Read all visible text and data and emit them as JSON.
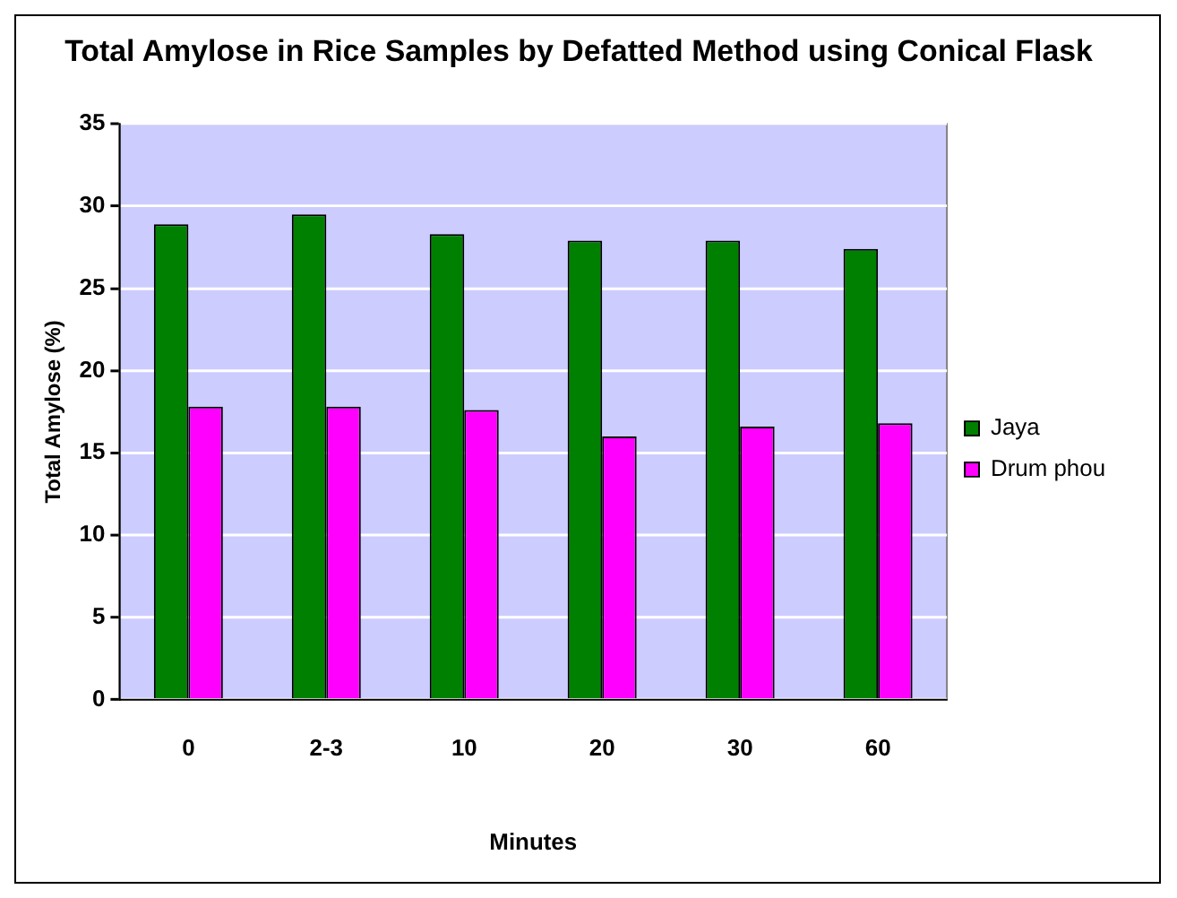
{
  "chart_data": {
    "type": "bar",
    "title": "Total Amylose in Rice Samples by Defatted Method using Conical Flask",
    "xlabel": "Minutes",
    "ylabel": "Total Amylose (%)",
    "categories": [
      "0",
      "2-3",
      "10",
      "20",
      "30",
      "60"
    ],
    "series": [
      {
        "name": "Jaya",
        "color": "#008000",
        "values": [
          28.9,
          29.5,
          28.3,
          27.9,
          27.9,
          27.4
        ]
      },
      {
        "name": "Drum phou",
        "color": "#ff00ff",
        "values": [
          17.8,
          17.8,
          17.6,
          16.0,
          16.6,
          16.8
        ]
      }
    ],
    "ylim": [
      0,
      35
    ],
    "yticks": [
      0,
      5,
      10,
      15,
      20,
      25,
      30,
      35
    ],
    "grid": "y",
    "legend": "right"
  }
}
